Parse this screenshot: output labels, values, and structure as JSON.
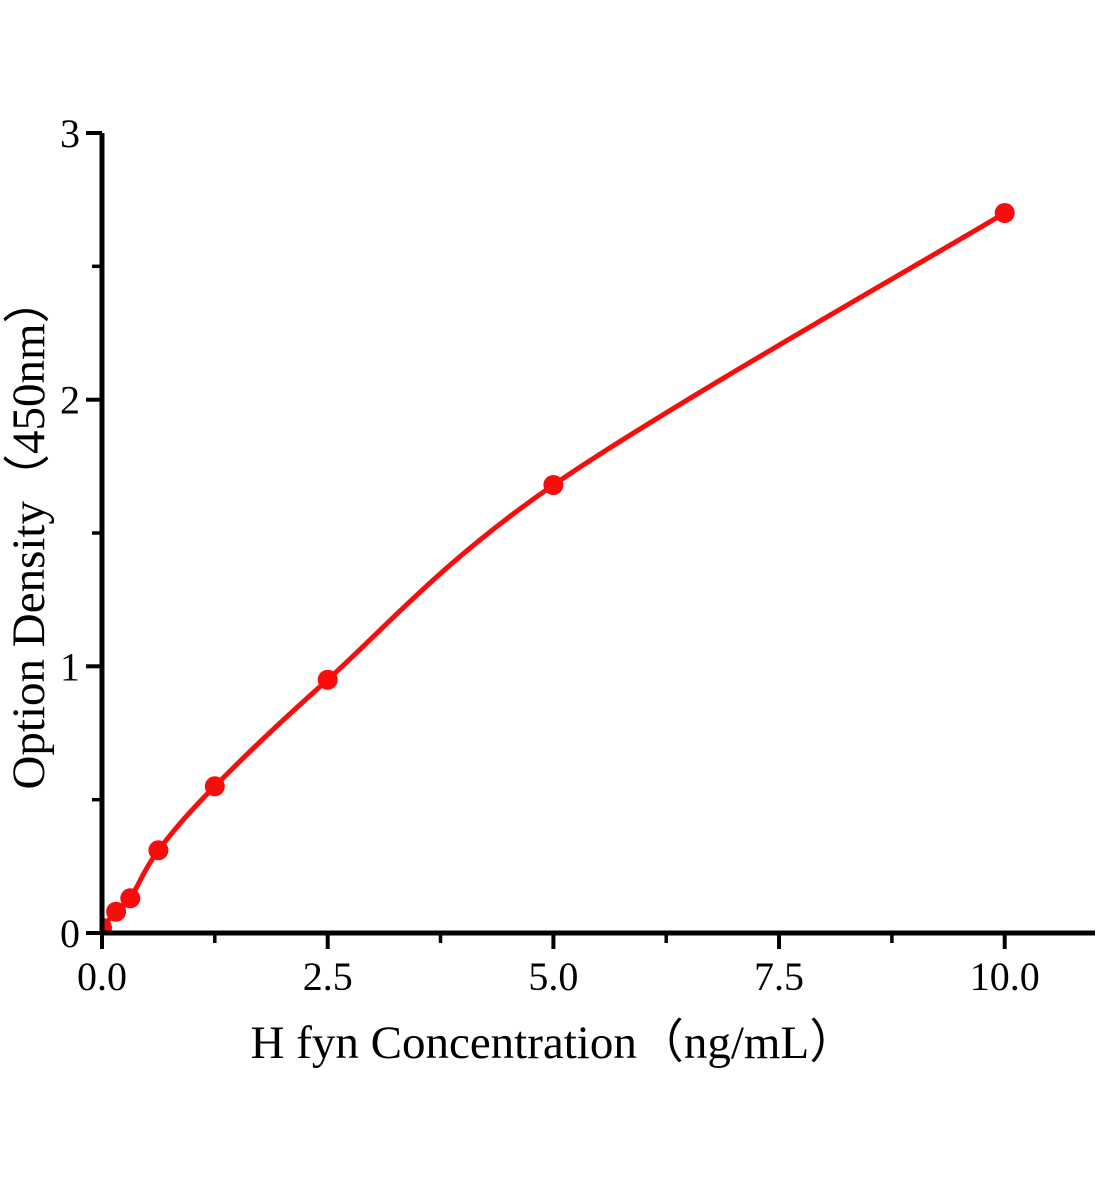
{
  "chart_data": {
    "type": "line",
    "title": "",
    "xlabel": "H fyn Concentration（ng/mL）",
    "ylabel": "Option Density（450nm）",
    "x": [
      0,
      0.156,
      0.313,
      0.625,
      1.25,
      2.5,
      5,
      10
    ],
    "y": [
      0.02,
      0.08,
      0.13,
      0.31,
      0.55,
      0.95,
      1.68,
      2.7
    ],
    "xlim": [
      0,
      11.0
    ],
    "ylim": [
      0,
      3
    ],
    "x_major_ticks": [
      0,
      2.5,
      5,
      7.5,
      10
    ],
    "x_tick_labels": [
      "0.0",
      "2.5",
      "5.0",
      "7.5",
      "10.0"
    ],
    "x_minor_ticks": [
      1.25,
      3.75,
      6.25,
      8.75
    ],
    "y_major_ticks": [
      0,
      1,
      2,
      3
    ],
    "y_tick_labels": [
      "0",
      "1",
      "2",
      "3"
    ],
    "y_minor_ticks": [
      0.5,
      1.5,
      2.5
    ],
    "grid": false,
    "legend": "none",
    "marker_shape": "circle",
    "marker_diameter_px": 20,
    "line_color": "#f80c0c",
    "marker_color": "#f80c0c",
    "axis_color": "#000000",
    "background_color": "#ffffff"
  }
}
